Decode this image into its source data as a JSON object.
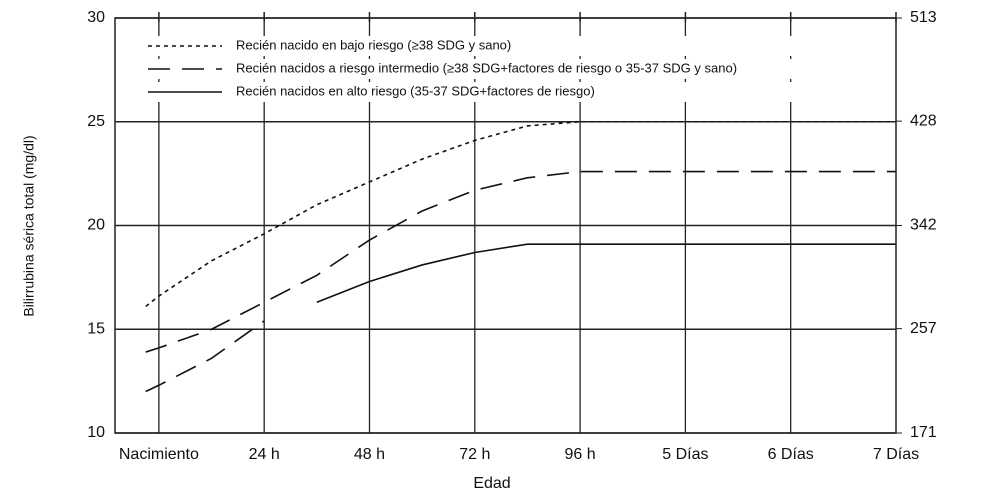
{
  "chart_data": {
    "type": "line",
    "x_label": "Edad",
    "y_label": "Bilirrubina sérica total (mg/dl)",
    "x": [
      -3,
      0,
      12,
      24,
      36,
      48,
      60,
      72,
      84,
      96,
      120,
      144,
      168
    ],
    "xlim": [
      -10,
      168
    ],
    "xticks": [
      {
        "value": 0,
        "label": "Nacimiento"
      },
      {
        "value": 24,
        "label": "24 h"
      },
      {
        "value": 48,
        "label": "48 h"
      },
      {
        "value": 72,
        "label": "72 h"
      },
      {
        "value": 96,
        "label": "96 h"
      },
      {
        "value": 120,
        "label": "5 Días"
      },
      {
        "value": 144,
        "label": "6 Días"
      },
      {
        "value": 168,
        "label": "7 Días"
      }
    ],
    "ylim": [
      10,
      30
    ],
    "yticks": [
      10,
      15,
      20,
      25,
      30
    ],
    "y2lim": [
      171,
      513
    ],
    "y2ticks": [
      171,
      257,
      342,
      428,
      513
    ],
    "grid": true,
    "legend": "upper left",
    "series": [
      {
        "name": "Recién nacido en bajo riesgo (≥38 SDG y sano)",
        "color": "#111",
        "style": "dotted",
        "values": [
          16.1,
          16.6,
          18.3,
          19.6,
          21.0,
          22.1,
          23.2,
          24.1,
          24.8,
          25.0,
          25.0,
          25.0,
          25.0
        ]
      },
      {
        "name": "Recién nacidos a riesgo intermedio (≥38 SDG+factores de riesgo o 35-37 SDG y sano)",
        "color": "#111",
        "style": "dashed",
        "values": [
          13.9,
          14.1,
          15.0,
          16.3,
          17.6,
          19.3,
          20.7,
          21.7,
          22.3,
          22.6,
          22.6,
          22.6,
          22.6
        ]
      },
      {
        "name": "Recién nacidos en alto riesgo (35-37 SDG+factores de riesgo)",
        "color": "#111",
        "style": "solid",
        "dash_before": 24,
        "values": [
          12.0,
          12.3,
          13.6,
          15.4,
          16.3,
          17.3,
          18.1,
          18.7,
          19.1,
          19.1,
          19.1,
          19.1,
          19.1
        ]
      }
    ]
  }
}
